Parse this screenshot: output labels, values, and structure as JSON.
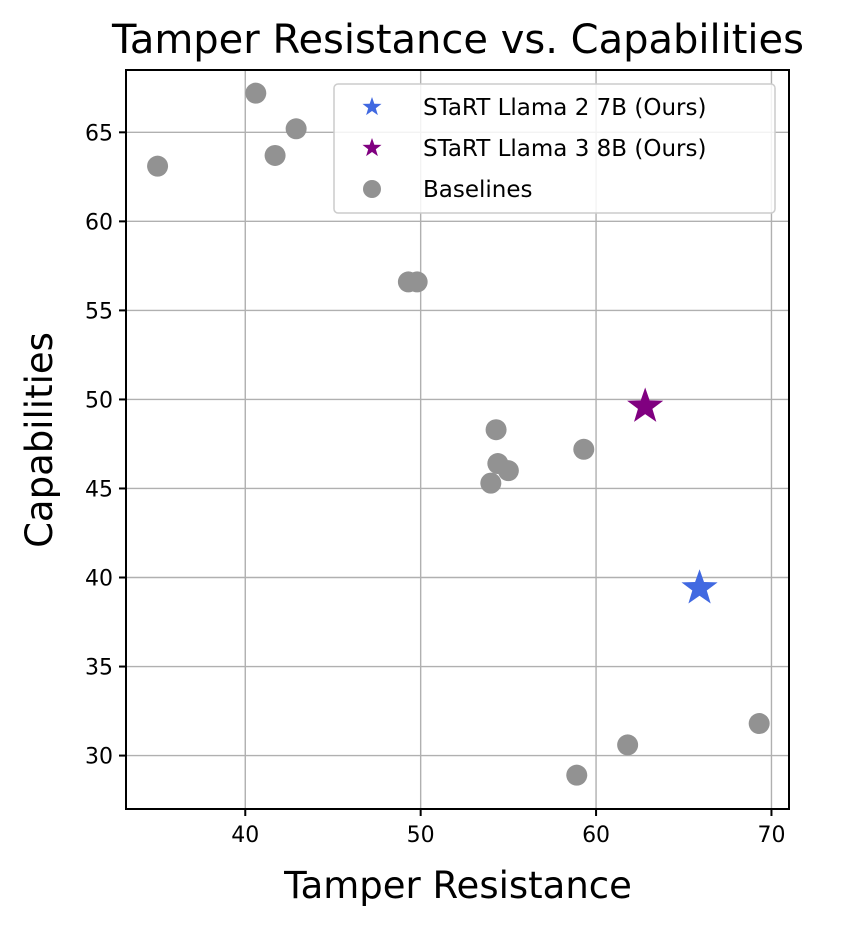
{
  "chart_data": {
    "type": "scatter",
    "title": "Tamper Resistance vs. Capabilities",
    "xlabel": "Tamper Resistance",
    "ylabel": "Capabilities",
    "xlim": [
      33.2,
      71.0
    ],
    "ylim": [
      27.0,
      68.5
    ],
    "xticks": [
      40,
      50,
      60,
      70
    ],
    "yticks": [
      30,
      35,
      40,
      45,
      50,
      55,
      60,
      65
    ],
    "grid": true,
    "legend_position": "top-right",
    "series": [
      {
        "name": "STaRT Llama 2 7B (Ours)",
        "marker": "star",
        "color": "#4169e1",
        "points": [
          {
            "x": 65.9,
            "y": 39.4
          }
        ]
      },
      {
        "name": "STaRT Llama 3 8B (Ours)",
        "marker": "star",
        "color": "#800080",
        "points": [
          {
            "x": 62.8,
            "y": 49.6
          }
        ]
      },
      {
        "name": "Baselines",
        "marker": "circle",
        "color": "#929292",
        "points": [
          {
            "x": 35.0,
            "y": 63.1
          },
          {
            "x": 40.6,
            "y": 67.2
          },
          {
            "x": 41.7,
            "y": 63.7
          },
          {
            "x": 42.9,
            "y": 65.2
          },
          {
            "x": 49.3,
            "y": 56.6
          },
          {
            "x": 49.8,
            "y": 56.6
          },
          {
            "x": 54.3,
            "y": 48.3
          },
          {
            "x": 54.4,
            "y": 46.4
          },
          {
            "x": 55.0,
            "y": 46.0
          },
          {
            "x": 54.0,
            "y": 45.3
          },
          {
            "x": 59.3,
            "y": 47.2
          },
          {
            "x": 58.9,
            "y": 28.9
          },
          {
            "x": 61.8,
            "y": 30.6
          },
          {
            "x": 69.3,
            "y": 31.8
          }
        ]
      }
    ]
  }
}
